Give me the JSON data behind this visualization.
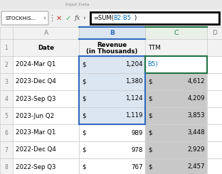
{
  "formula_bar_text": "=SUM(B2:B5)",
  "name_box_text": "STOCKHIS...",
  "col_headers": [
    "A",
    "B",
    "C",
    "D"
  ],
  "header_row": [
    "Date",
    "Revenue\n(in Thousands)",
    "TTM",
    ""
  ],
  "rows": [
    [
      "2024-Mar Q1",
      "$ 1,204",
      "B5)",
      ""
    ],
    [
      "2023-Dec Q4",
      "$ 1,380",
      "$ 4,612",
      ""
    ],
    [
      "2023-Sep Q3",
      "$ 1,124",
      "$ 4,209",
      ""
    ],
    [
      "2023-Jun Q2",
      "$ 1,119",
      "$ 3,853",
      ""
    ],
    [
      "2023-Mar Q1",
      "$ 989",
      "$ 3,448",
      ""
    ],
    [
      "2022-Dec Q4",
      "$ 978",
      "$ 2,929",
      ""
    ],
    [
      "2022-Sep Q3",
      "$ 767",
      "$ 2,457",
      ""
    ]
  ],
  "toolbar_bg": "#f0f0f0",
  "cell_bg_white": "#ffffff",
  "cell_bg_header": "#f2f2f2",
  "cell_bg_sel_B": "#dce6f1",
  "cell_bg_ttm": "#c8c8c8",
  "grid_color": "#d0d0d0",
  "sel_border_color": "#2f6abf",
  "c_header_color": "#217346",
  "formula_ref_color": "#0070c0",
  "row_num_color": "#808080",
  "col_hdr_text_B": "#2f6abf",
  "col_hdr_text_C": "#217346",
  "col_hdr_text_default": "#808080",
  "top_strip_bg": "#e8e8e8",
  "fig_w": 3.12,
  "fig_h": 2.45,
  "dpi": 100
}
